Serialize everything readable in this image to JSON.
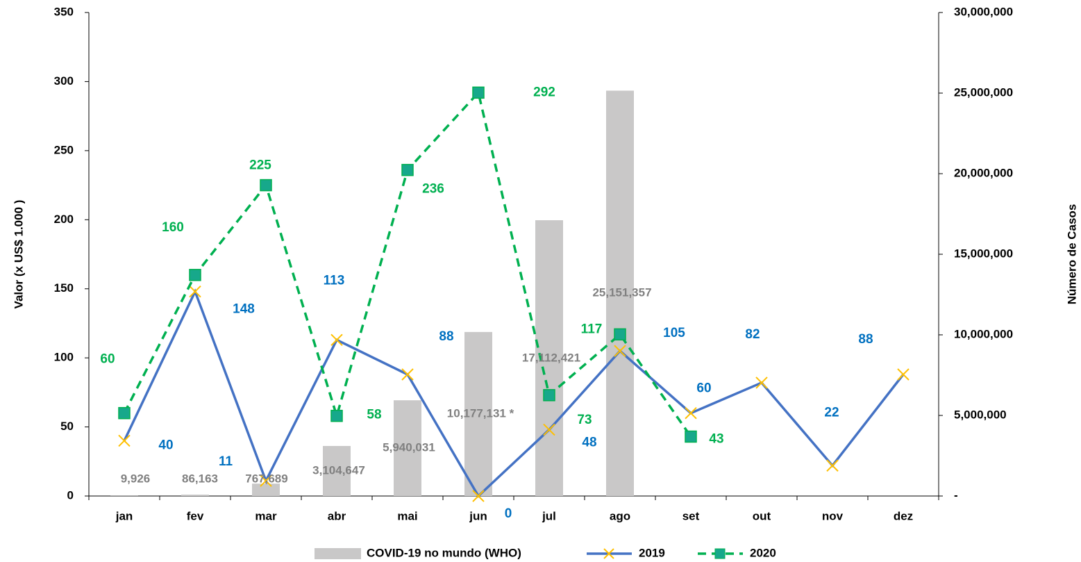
{
  "chart_data": {
    "type": "combo",
    "y_label": "Valor (x US$ 1.000 )",
    "y2_label": "Número de Casos",
    "categories": [
      "jan",
      "fev",
      "mar",
      "abr",
      "mai",
      "jun",
      "jul",
      "ago",
      "set",
      "out",
      "nov",
      "dez"
    ],
    "ylim": [
      0,
      350
    ],
    "yticks": [
      0,
      50,
      100,
      150,
      200,
      250,
      300,
      350
    ],
    "y2lim": [
      0,
      30000000
    ],
    "y2ticks": [
      {
        "value": 0,
        "label": "-"
      },
      {
        "value": 5000000,
        "label": "5,000,000"
      },
      {
        "value": 10000000,
        "label": "10,000,000"
      },
      {
        "value": 15000000,
        "label": "15,000,000"
      },
      {
        "value": 20000000,
        "label": "20,000,000"
      },
      {
        "value": 25000000,
        "label": "25,000,000"
      },
      {
        "value": 30000000,
        "label": "30,000,000"
      }
    ],
    "legend": "bottom",
    "series": [
      {
        "name": "COVID-19 no mundo (WHO)",
        "type": "bar",
        "axis": "y2",
        "color": "#c9c8c8",
        "label_color": "#808080",
        "values": [
          9926,
          86163,
          767689,
          3104647,
          5940031,
          10177131,
          17112421,
          25151357,
          null,
          null,
          null,
          null
        ],
        "value_labels": [
          "9,926",
          "86,163",
          "767,689",
          "3,104,647",
          "5,940,031",
          "10,177,131 *",
          "17,112,421",
          "25,151,357",
          null,
          null,
          null,
          null
        ]
      },
      {
        "name": "2019",
        "type": "line",
        "color": "#4472c4",
        "marker": "x",
        "marker_color": "#ffc000",
        "label_color": "#0070c0",
        "dashed": false,
        "values": [
          40,
          148,
          11,
          113,
          88,
          0,
          48,
          105,
          60,
          82,
          22,
          88
        ]
      },
      {
        "name": "2020",
        "type": "line",
        "color": "#00b050",
        "marker": "square",
        "marker_color": "#17a88b",
        "label_color": "#00b050",
        "dashed": true,
        "values": [
          60,
          160,
          225,
          58,
          236,
          292,
          73,
          117,
          43,
          null,
          null,
          null
        ]
      }
    ]
  }
}
